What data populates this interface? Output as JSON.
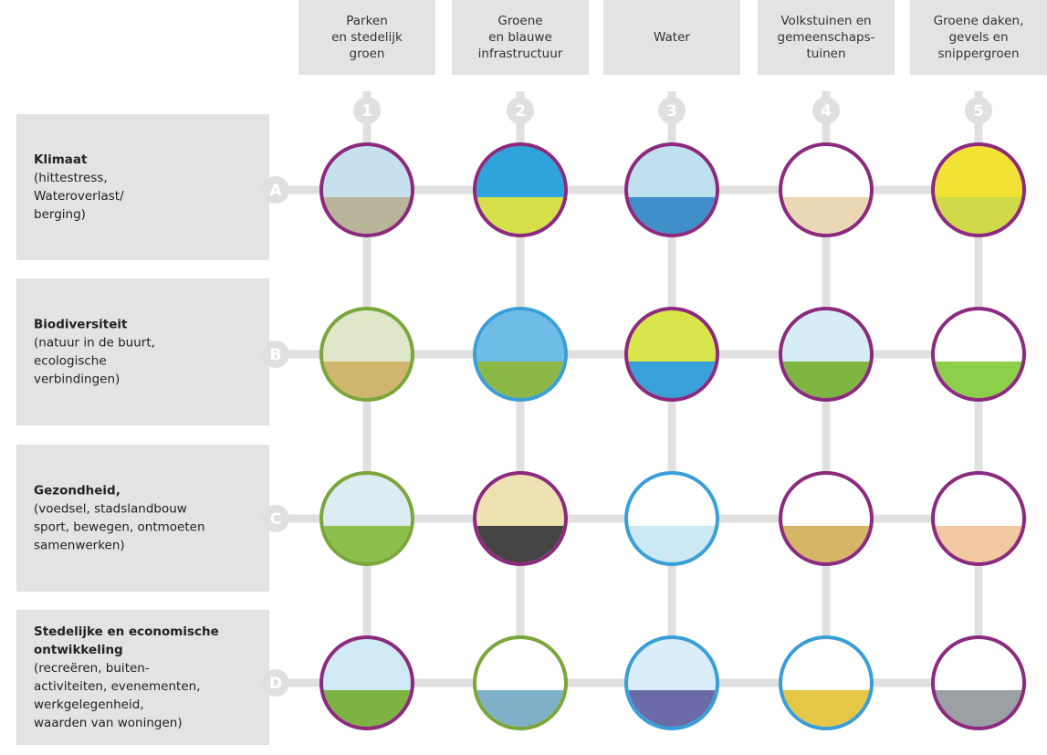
{
  "columns": [
    {
      "number": "1",
      "label": [
        "Parken",
        "en stedelijk",
        "groen"
      ]
    },
    {
      "number": "2",
      "label": [
        "Groene",
        "en blauwe",
        "infrastructuur"
      ]
    },
    {
      "number": "3",
      "label": [
        "Water"
      ]
    },
    {
      "number": "4",
      "label": [
        "Volkstuinen en",
        "gemeenschaps-",
        "tuinen"
      ]
    },
    {
      "number": "5",
      "label": [
        "Groene daken,",
        "gevels en",
        "snippergroen"
      ]
    }
  ],
  "rows": [
    {
      "letter": "A",
      "title": "Klimaat",
      "description": [
        "(hittestress,",
        "Wateroverlast/",
        "berging)"
      ]
    },
    {
      "letter": "B",
      "title": "Biodiversiteit",
      "description": [
        "(natuur in de buurt,",
        "ecologische",
        "verbindingen)"
      ]
    },
    {
      "letter": "C",
      "title": "Gezondheid,",
      "description": [
        "(voedsel, stadslandbouw",
        "sport, bewegen, ontmoeten",
        "samenwerken)"
      ]
    },
    {
      "letter": "D",
      "title": "Stedelijke en economische",
      "description": [
        "ontwikkeling",
        "(recreëren, buiten-",
        "activiteiten, evenementen,",
        "werkgelegenheid,",
        "waarden van woningen)"
      ]
    }
  ]
}
